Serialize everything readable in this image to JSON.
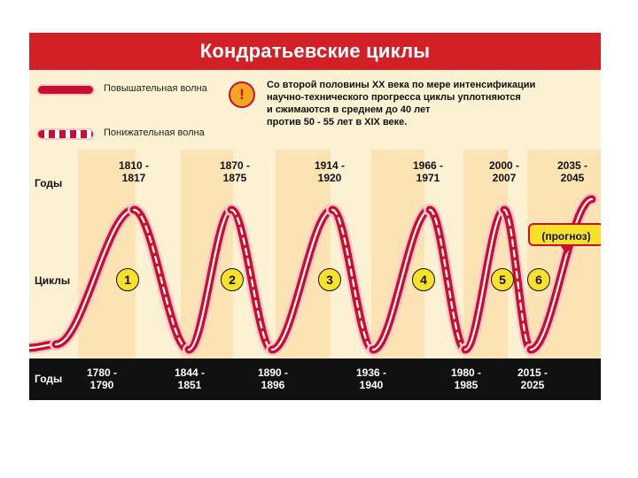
{
  "title": "Кондратьевские циклы",
  "legend": {
    "rising": "Повышательная волна",
    "falling": "Понижательная волна"
  },
  "note_lines": [
    "Со второй половины XX века  по  мере интенсификации",
    "научно-технического прогресса  циклы  уплотняются",
    "и сжимаются в среднем до 40 лет",
    "против 50 - 55 лет в XIX веке."
  ],
  "row_labels": {
    "years_top": "Годы",
    "cycles": "Циклы",
    "years_bottom": "Годы"
  },
  "peaks": [
    {
      "a": "1810 -",
      "b": "1817"
    },
    {
      "a": "1870 -",
      "b": "1875"
    },
    {
      "a": "1914 -",
      "b": "1920"
    },
    {
      "a": "1966 -",
      "b": "1971"
    },
    {
      "a": "2000 -",
      "b": "2007"
    },
    {
      "a": "2035 -",
      "b": "2045"
    }
  ],
  "troughs": [
    {
      "a": "1780 -",
      "b": "1790"
    },
    {
      "a": "1844 -",
      "b": "1851"
    },
    {
      "a": "1890 -",
      "b": "1896"
    },
    {
      "a": "1936 -",
      "b": "1940"
    },
    {
      "a": "1980 -",
      "b": "1985"
    },
    {
      "a": "2015 -",
      "b": "2025"
    }
  ],
  "cycles": [
    "1",
    "2",
    "3",
    "4",
    "5",
    "6"
  ],
  "forecast": "(прогноз)",
  "warning_symbol": "!",
  "colors": {
    "wave": "#c8102e",
    "title_bg": "#d32027",
    "band": "#fbe3b4",
    "background": "#fdf1d3",
    "bottom_bar": "#111111",
    "badge": "#f7e12b"
  }
}
